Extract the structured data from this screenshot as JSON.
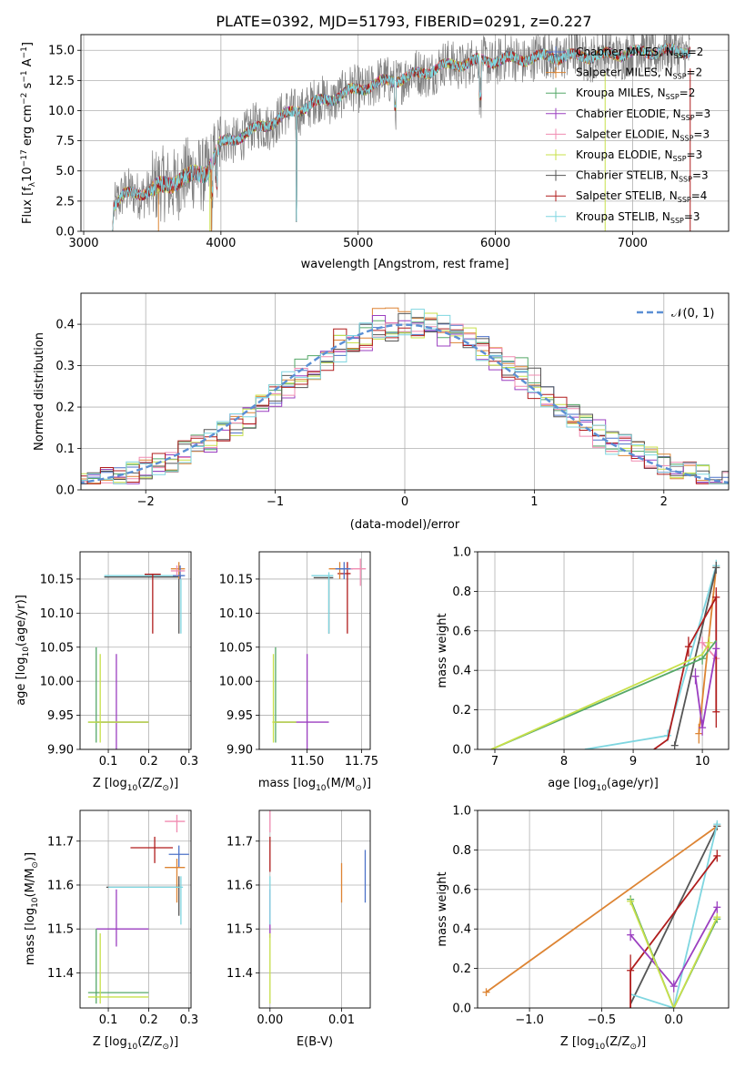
{
  "figure": {
    "title": "PLATE=0392, MJD=51793, FIBERID=0291, z=0.227"
  },
  "colors": [
    "#4d72c8",
    "#dd8433",
    "#55a868",
    "#9b3fc0",
    "#f08bb1",
    "#c8e04a",
    "#555555",
    "#b01c1c",
    "#7fd6e0"
  ],
  "chart_data": [
    {
      "id": "spectrum",
      "type": "line",
      "xlabel": "wavelength [Angstrom, rest frame]",
      "ylabel_parts": [
        "Flux [f",
        "λ",
        "10",
        "−17",
        " erg cm",
        "−2",
        " s",
        "−1",
        " A",
        "−1",
        "]"
      ],
      "xlim": [
        2980,
        7700
      ],
      "ylim": [
        0,
        16.3
      ],
      "xticks": [
        3000,
        4000,
        5000,
        6000,
        7000
      ],
      "yticks": [
        0.0,
        2.5,
        5.0,
        7.5,
        10.0,
        12.5,
        15.0
      ],
      "xtick_labels": [
        "3000",
        "4000",
        "5000",
        "6000",
        "7000"
      ],
      "ytick_labels": [
        "0.0",
        "2.5",
        "5.0",
        "7.5",
        "10.0",
        "12.5",
        "15.0"
      ],
      "continuum": {
        "x": [
          3220,
          3300,
          3500,
          3700,
          3900,
          4000,
          4200,
          4400,
          4600,
          4800,
          5000,
          5200,
          5400,
          5600,
          5800,
          6000,
          6200,
          6400,
          6600,
          6800,
          7000,
          7200,
          7400
        ],
        "y": [
          2.2,
          3.0,
          3.4,
          4.3,
          5.0,
          7.2,
          8.2,
          9.2,
          10.3,
          11.0,
          11.8,
          12.4,
          12.9,
          13.6,
          14.0,
          14.2,
          14.3,
          14.5,
          14.5,
          14.6,
          14.8,
          14.9,
          15.0
        ]
      },
      "series": [
        {
          "name": "Chabrier MILES, N",
          "sub": "SSP",
          "suffix": "=2"
        },
        {
          "name": "Salpeter MILES, N",
          "sub": "SSP",
          "suffix": "=2"
        },
        {
          "name": "Kroupa MILES, N",
          "sub": "SSP",
          "suffix": "=2"
        },
        {
          "name": "Chabrier ELODIE, N",
          "sub": "SSP",
          "suffix": "=3"
        },
        {
          "name": "Salpeter ELODIE, N",
          "sub": "SSP",
          "suffix": "=3"
        },
        {
          "name": "Kroupa ELODIE, N",
          "sub": "SSP",
          "suffix": "=3"
        },
        {
          "name": "Chabrier STELIB, N",
          "sub": "SSP",
          "suffix": "=3"
        },
        {
          "name": "Salpeter STELIB, N",
          "sub": "SSP",
          "suffix": "=4"
        },
        {
          "name": "Kroupa STELIB, N",
          "sub": "SSP",
          "suffix": "=3"
        }
      ],
      "legend": "upper right"
    },
    {
      "id": "residuals",
      "type": "histogram",
      "xlabel": "(data-model)/error",
      "ylabel": "Normed distribution",
      "xlim": [
        -2.5,
        2.5
      ],
      "ylim": [
        0,
        0.475
      ],
      "xticks": [
        -2,
        -1,
        0,
        1,
        2
      ],
      "yticks": [
        0.0,
        0.1,
        0.2,
        0.3,
        0.4
      ],
      "xtick_labels": [
        "−2",
        "−1",
        "0",
        "1",
        "2"
      ],
      "ytick_labels": [
        "0.0",
        "0.1",
        "0.2",
        "0.3",
        "0.4"
      ],
      "bin_width": 0.1,
      "reference_curve": "N(0,1)",
      "legend_label": "𝒩(0, 1)",
      "legend": "upper right"
    },
    {
      "id": "age-vs-Z",
      "type": "errorbar",
      "xlabel_parts": [
        "Z [log",
        "10",
        "(Z/Z",
        "⊙",
        ")]"
      ],
      "ylabel_parts": [
        "age  [log",
        "10",
        "(age/yr)]"
      ],
      "xlim": [
        0.03,
        0.305
      ],
      "ylim": [
        9.9,
        10.19
      ],
      "xticks": [
        0.1,
        0.2,
        0.3
      ],
      "yticks": [
        9.9,
        9.95,
        10.0,
        10.05,
        10.1,
        10.15
      ],
      "xtick_labels": [
        "0.1",
        "0.2",
        "0.3"
      ],
      "ytick_labels": [
        "9.90",
        "9.95",
        "10.00",
        "10.05",
        "10.10",
        "10.15"
      ],
      "points": [
        {
          "c": 6,
          "x": 0.205,
          "y": 10.153,
          "xl": 0.09,
          "xh": 0.28,
          "yl": 10.153,
          "yh": 10.153
        },
        {
          "c": 8,
          "x": 0.21,
          "y": 10.155,
          "xl": 0.09,
          "xh": 0.285,
          "yl": 10.155,
          "yh": 10.155
        },
        {
          "c": 7,
          "x": 0.21,
          "y": 10.157,
          "xl": 0.19,
          "xh": 0.23,
          "yl": 10.07,
          "yh": 10.158
        },
        {
          "c": 1,
          "x": 0.275,
          "y": 10.165,
          "xl": 0.255,
          "xh": 0.29,
          "yl": 10.15,
          "yh": 10.175
        },
        {
          "c": 0,
          "x": 0.278,
          "y": 10.155,
          "xl": 0.26,
          "xh": 0.29,
          "yl": 10.15,
          "yh": 10.17
        },
        {
          "c": 4,
          "x": 0.27,
          "y": 10.162,
          "xl": 0.255,
          "xh": 0.29,
          "yl": 10.155,
          "yh": 10.17
        },
        {
          "c": 6,
          "x": 0.275,
          "y": 10.15,
          "xl": 0.275,
          "xh": 0.275,
          "yl": 10.07,
          "yh": 10.15
        },
        {
          "c": 8,
          "x": 0.28,
          "y": 10.15,
          "xl": 0.28,
          "xh": 0.28,
          "yl": 10.07,
          "yh": 10.15
        },
        {
          "c": 3,
          "x": 0.12,
          "y": 9.94,
          "xl": 0.07,
          "xh": 0.2,
          "yl": 9.9,
          "yh": 10.04
        },
        {
          "c": 2,
          "x": 0.07,
          "y": 9.94,
          "xl": 0.05,
          "xh": 0.2,
          "yl": 9.91,
          "yh": 10.05
        },
        {
          "c": 5,
          "x": 0.08,
          "y": 9.94,
          "xl": 0.05,
          "xh": 0.2,
          "yl": 9.91,
          "yh": 10.04
        }
      ]
    },
    {
      "id": "age-vs-mass",
      "type": "errorbar",
      "xlabel_parts": [
        "mass [log",
        "10",
        "(M/M",
        "⊙",
        ")]"
      ],
      "xlim": [
        11.28,
        11.79
      ],
      "ylim": [
        9.9,
        10.19
      ],
      "xticks": [
        11.5,
        11.75
      ],
      "yticks": [
        9.9,
        9.95,
        10.0,
        10.05,
        10.1,
        10.15
      ],
      "xtick_labels": [
        "11.50",
        "11.75"
      ],
      "ytick_labels": [
        "9.90",
        "9.95",
        "10.00",
        "10.05",
        "10.10",
        "10.15"
      ],
      "points": [
        {
          "c": 6,
          "x": 11.6,
          "y": 10.152,
          "xl": 11.53,
          "xh": 11.62,
          "yl": 10.07,
          "yh": 10.155
        },
        {
          "c": 8,
          "x": 11.6,
          "y": 10.155,
          "xl": 11.52,
          "xh": 11.62,
          "yl": 10.07,
          "yh": 10.16
        },
        {
          "c": 7,
          "x": 11.685,
          "y": 10.158,
          "xl": 11.64,
          "xh": 11.7,
          "yl": 10.07,
          "yh": 10.175
        },
        {
          "c": 1,
          "x": 11.65,
          "y": 10.165,
          "xl": 11.6,
          "xh": 11.7,
          "yl": 10.15,
          "yh": 10.175
        },
        {
          "c": 0,
          "x": 11.67,
          "y": 10.165,
          "xl": 11.63,
          "xh": 11.71,
          "yl": 10.15,
          "yh": 10.175
        },
        {
          "c": 4,
          "x": 11.745,
          "y": 10.165,
          "xl": 11.7,
          "xh": 11.77,
          "yl": 10.14,
          "yh": 10.18
        },
        {
          "c": 3,
          "x": 11.5,
          "y": 9.94,
          "xl": 11.35,
          "xh": 11.6,
          "yl": 9.9,
          "yh": 10.04
        },
        {
          "c": 2,
          "x": 11.355,
          "y": 9.94,
          "xl": 11.35,
          "xh": 11.45,
          "yl": 9.91,
          "yh": 10.05
        },
        {
          "c": 5,
          "x": 11.345,
          "y": 9.94,
          "xl": 11.34,
          "xh": 11.45,
          "yl": 9.91,
          "yh": 10.04
        }
      ]
    },
    {
      "id": "weight-vs-age",
      "type": "line",
      "xlabel_parts": [
        "age  [log",
        "10",
        "(age/yr)]"
      ],
      "ylabel": "mass weight",
      "xlim": [
        6.75,
        10.38
      ],
      "ylim": [
        0,
        1.0
      ],
      "xticks": [
        7,
        8,
        9,
        10
      ],
      "yticks": [
        0.0,
        0.2,
        0.4,
        0.6,
        0.8,
        1.0
      ],
      "xtick_labels": [
        "7",
        "8",
        "9",
        "10"
      ],
      "ytick_labels": [
        "0.0",
        "0.2",
        "0.4",
        "0.6",
        "0.8",
        "1.0"
      ],
      "series": [
        {
          "c": 1,
          "x": [
            9.95,
            10.2
          ],
          "y": [
            0.08,
            0.92
          ],
          "err": [
            [
              9.95,
              0.08,
              0.05
            ],
            [
              10.2,
              0.92,
              0.03
            ]
          ]
        },
        {
          "c": 4,
          "x": [
            10.0,
            10.2
          ],
          "y": [
            0.54,
            0.46
          ],
          "err": [
            [
              10.0,
              0.54,
              0.03
            ],
            [
              10.2,
              0.46,
              0.03
            ]
          ]
        },
        {
          "c": 8,
          "x": [
            8.3,
            9.5,
            10.2
          ],
          "y": [
            0.0,
            0.07,
            0.93
          ],
          "err": [
            [
              9.5,
              0.07,
              0.03
            ],
            [
              10.2,
              0.93,
              0.03
            ]
          ]
        },
        {
          "c": 6,
          "x": [
            9.6,
            10.2
          ],
          "y": [
            0.02,
            0.92
          ],
          "err": [
            [
              9.6,
              0.02,
              0.02
            ],
            [
              10.2,
              0.92,
              0.03
            ]
          ]
        },
        {
          "c": 7,
          "x": [
            9.3,
            9.5,
            9.8,
            10.2,
            10.2
          ],
          "y": [
            0.0,
            0.05,
            0.52,
            0.77,
            0.19
          ],
          "err": [
            [
              9.8,
              0.52,
              0.05
            ],
            [
              10.2,
              0.77,
              0.05
            ],
            [
              10.2,
              0.19,
              0.08
            ]
          ]
        },
        {
          "c": 3,
          "x": [
            9.9,
            10.0,
            10.2
          ],
          "y": [
            0.37,
            0.11,
            0.51
          ],
          "err": [
            [
              9.9,
              0.37,
              0.04
            ],
            [
              10.0,
              0.11,
              0.04
            ],
            [
              10.2,
              0.51,
              0.04
            ]
          ]
        },
        {
          "c": 2,
          "x": [
            6.95,
            10.0,
            10.2
          ],
          "y": [
            0.0,
            0.46,
            0.55
          ],
          "err": [
            [
              10.0,
              0.46,
              0.03
            ]
          ]
        },
        {
          "c": 5,
          "x": [
            6.95,
            10.0,
            10.1
          ],
          "y": [
            0.0,
            0.48,
            0.54
          ],
          "err": [
            [
              10.1,
              0.54,
              0.03
            ]
          ]
        }
      ]
    },
    {
      "id": "mass-vs-Z",
      "type": "errorbar",
      "xlabel_parts": [
        "Z [log",
        "10",
        "(Z/Z",
        "⊙",
        ")]"
      ],
      "ylabel_parts": [
        "mass [log",
        "10",
        "(M/M",
        "⊙",
        ")]"
      ],
      "xlim": [
        0.03,
        0.305
      ],
      "ylim": [
        11.32,
        11.77
      ],
      "xticks": [
        0.1,
        0.2,
        0.3
      ],
      "yticks": [
        11.4,
        11.5,
        11.6,
        11.7
      ],
      "xtick_labels": [
        "0.1",
        "0.2",
        "0.3"
      ],
      "ytick_labels": [
        "11.4",
        "11.5",
        "11.6",
        "11.7"
      ],
      "points": [
        {
          "c": 4,
          "x": 0.27,
          "y": 11.745,
          "xl": 0.24,
          "xh": 0.29,
          "yl": 11.72,
          "yh": 11.76
        },
        {
          "c": 7,
          "x": 0.215,
          "y": 11.685,
          "xl": 0.155,
          "xh": 0.26,
          "yl": 11.65,
          "yh": 11.71
        },
        {
          "c": 0,
          "x": 0.275,
          "y": 11.67,
          "xl": 0.25,
          "xh": 0.3,
          "yl": 11.64,
          "yh": 11.69
        },
        {
          "c": 1,
          "x": 0.27,
          "y": 11.64,
          "xl": 0.24,
          "xh": 0.29,
          "yl": 11.56,
          "yh": 11.66
        },
        {
          "c": 6,
          "x": 0.275,
          "y": 11.595,
          "xl": 0.095,
          "xh": 0.28,
          "yl": 11.53,
          "yh": 11.62
        },
        {
          "c": 8,
          "x": 0.28,
          "y": 11.595,
          "xl": 0.1,
          "xh": 0.285,
          "yl": 11.51,
          "yh": 11.62
        },
        {
          "c": 3,
          "x": 0.12,
          "y": 11.5,
          "xl": 0.07,
          "xh": 0.2,
          "yl": 11.46,
          "yh": 11.59
        },
        {
          "c": 2,
          "x": 0.07,
          "y": 11.355,
          "xl": 0.05,
          "xh": 0.2,
          "yl": 11.33,
          "yh": 11.5
        },
        {
          "c": 5,
          "x": 0.08,
          "y": 11.345,
          "xl": 0.05,
          "xh": 0.2,
          "yl": 11.33,
          "yh": 11.49
        }
      ]
    },
    {
      "id": "mass-vs-EBV",
      "type": "errorbar",
      "xlabel": "E(B-V)",
      "xlim": [
        -0.0015,
        0.014
      ],
      "ylim": [
        11.32,
        11.77
      ],
      "xticks": [
        0.0,
        0.01
      ],
      "yticks": [
        11.4,
        11.5,
        11.6,
        11.7
      ],
      "xtick_labels": [
        "0.00",
        "0.01"
      ],
      "ytick_labels": [
        "11.4",
        "11.5",
        "11.6",
        "11.7"
      ],
      "points": [
        {
          "c": 7,
          "x": 0.0,
          "y": 11.685,
          "yl": 11.63,
          "yh": 11.71
        },
        {
          "c": 4,
          "x": 0.0,
          "y": 11.745,
          "yl": 11.72,
          "yh": 11.77
        },
        {
          "c": 3,
          "x": 0.0,
          "y": 11.5,
          "yl": 11.48,
          "yh": 11.59
        },
        {
          "c": 8,
          "x": 0.0,
          "y": 11.595,
          "yl": 11.51,
          "yh": 11.62
        },
        {
          "c": 5,
          "x": 0.0,
          "y": 11.4,
          "yl": 11.33,
          "yh": 11.49
        },
        {
          "c": 1,
          "x": 0.01,
          "y": 11.62,
          "yl": 11.56,
          "yh": 11.65
        },
        {
          "c": 0,
          "x": 0.0133,
          "y": 11.63,
          "yl": 11.56,
          "yh": 11.68
        }
      ]
    },
    {
      "id": "weight-vs-Z",
      "type": "line",
      "xlabel_parts": [
        "Z [log",
        "10",
        "(Z/Z",
        "⊙",
        ")]"
      ],
      "ylabel": "mass weight",
      "xlim": [
        -1.36,
        0.38
      ],
      "ylim": [
        0,
        1.0
      ],
      "xticks": [
        -1.0,
        -0.5,
        0.0
      ],
      "yticks": [
        0.0,
        0.2,
        0.4,
        0.6,
        0.8,
        1.0
      ],
      "xtick_labels": [
        "−1.0",
        "−0.5",
        "0.0"
      ],
      "ytick_labels": [
        "0.0",
        "0.2",
        "0.4",
        "0.6",
        "0.8",
        "1.0"
      ],
      "series": [
        {
          "c": 1,
          "x": [
            -1.3,
            0.3
          ],
          "y": [
            0.08,
            0.92
          ],
          "err": [
            [
              -1.3,
              0.08,
              0.02
            ],
            [
              0.3,
              0.92,
              0.02
            ]
          ]
        },
        {
          "c": 6,
          "x": [
            -0.3,
            0.3
          ],
          "y": [
            0.02,
            0.92
          ],
          "err": [
            [
              0.3,
              0.92,
              0.02
            ]
          ]
        },
        {
          "c": 8,
          "x": [
            -0.3,
            0.0,
            0.3
          ],
          "y": [
            0.07,
            0.0,
            0.93
          ],
          "err": [
            [
              0.3,
              0.93,
              0.02
            ]
          ]
        },
        {
          "c": 7,
          "x": [
            -0.3,
            -0.3,
            0.3
          ],
          "y": [
            0.0,
            0.19,
            0.77
          ],
          "err": [
            [
              -0.3,
              0.19,
              0.08
            ],
            [
              0.3,
              0.77,
              0.03
            ]
          ]
        },
        {
          "c": 3,
          "x": [
            -0.3,
            0.0,
            0.3
          ],
          "y": [
            0.37,
            0.11,
            0.51
          ],
          "err": [
            [
              -0.3,
              0.37,
              0.03
            ],
            [
              0.0,
              0.11,
              0.03
            ],
            [
              0.3,
              0.51,
              0.03
            ]
          ]
        },
        {
          "c": 2,
          "x": [
            -0.3,
            0.0,
            0.3
          ],
          "y": [
            0.55,
            0.0,
            0.45
          ],
          "err": [
            [
              -0.3,
              0.55,
              0.02
            ],
            [
              0.3,
              0.45,
              0.02
            ]
          ]
        },
        {
          "c": 5,
          "x": [
            -0.3,
            0.0,
            0.3
          ],
          "y": [
            0.54,
            0.0,
            0.46
          ],
          "err": [
            [
              -0.3,
              0.54,
              0.02
            ],
            [
              0.3,
              0.46,
              0.02
            ]
          ]
        }
      ]
    }
  ]
}
